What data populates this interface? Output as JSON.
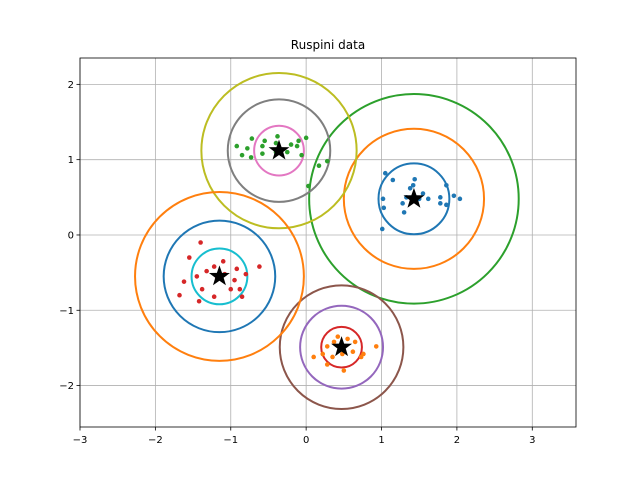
{
  "chart_data": {
    "type": "scatter",
    "title": "Ruspini data",
    "xlabel": "",
    "ylabel": "",
    "xlim": [
      -3,
      3.58
    ],
    "ylim": [
      -2.55,
      2.35
    ],
    "xticks": [
      -3,
      -2,
      -1,
      0,
      1,
      2,
      3
    ],
    "yticks": [
      -2,
      -1,
      0,
      1,
      2
    ],
    "xtick_labels": [
      "−3",
      "−2",
      "−1",
      "0",
      "1",
      "2",
      "3"
    ],
    "ytick_labels": [
      "−2",
      "−1",
      "0",
      "1",
      "2"
    ],
    "grid": true,
    "series": [
      {
        "color": "#1f77b4",
        "points": [
          [
            1.05,
            0.82
          ],
          [
            1.15,
            0.73
          ],
          [
            1.38,
            0.62
          ],
          [
            1.42,
            0.66
          ],
          [
            1.44,
            0.74
          ],
          [
            1.33,
            0.5
          ],
          [
            1.5,
            0.48
          ],
          [
            1.62,
            0.48
          ],
          [
            1.78,
            0.5
          ],
          [
            1.78,
            0.42
          ],
          [
            1.86,
            0.66
          ],
          [
            1.96,
            0.52
          ],
          [
            2.04,
            0.48
          ],
          [
            1.86,
            0.4
          ],
          [
            1.02,
            0.48
          ],
          [
            1.03,
            0.36
          ],
          [
            1.28,
            0.42
          ],
          [
            1.55,
            0.55
          ],
          [
            1.3,
            0.3
          ],
          [
            1.01,
            0.08
          ]
        ]
      },
      {
        "color": "#2ca02c",
        "points": [
          [
            -0.72,
            1.28
          ],
          [
            -0.55,
            1.25
          ],
          [
            -0.4,
            1.22
          ],
          [
            -0.1,
            1.25
          ],
          [
            0.0,
            1.29
          ],
          [
            -0.78,
            1.15
          ],
          [
            -0.58,
            1.08
          ],
          [
            -0.4,
            1.1
          ],
          [
            -0.25,
            1.1
          ],
          [
            -0.12,
            1.18
          ],
          [
            -0.85,
            1.06
          ],
          [
            -0.73,
            1.03
          ],
          [
            -0.58,
            1.18
          ],
          [
            -0.2,
            1.2
          ],
          [
            -0.38,
            1.31
          ],
          [
            -0.06,
            1.06
          ],
          [
            0.17,
            0.92
          ],
          [
            0.28,
            0.98
          ],
          [
            0.03,
            0.65
          ],
          [
            -0.92,
            1.18
          ]
        ]
      },
      {
        "color": "#ff7f0e",
        "points": [
          [
            0.1,
            -1.62
          ],
          [
            0.22,
            -1.58
          ],
          [
            0.28,
            -1.48
          ],
          [
            0.37,
            -1.42
          ],
          [
            0.42,
            -1.35
          ],
          [
            0.55,
            -1.38
          ],
          [
            0.65,
            -1.42
          ],
          [
            0.73,
            -1.62
          ],
          [
            0.76,
            -1.58
          ],
          [
            0.93,
            -1.48
          ],
          [
            0.5,
            -1.8
          ],
          [
            0.48,
            -1.58
          ],
          [
            0.62,
            -1.55
          ],
          [
            0.35,
            -1.62
          ],
          [
            0.28,
            -1.72
          ]
        ]
      },
      {
        "color": "#d62728",
        "points": [
          [
            -1.32,
            -0.48
          ],
          [
            -1.22,
            -0.42
          ],
          [
            -1.08,
            -0.52
          ],
          [
            -0.95,
            -0.6
          ],
          [
            -0.8,
            -0.52
          ],
          [
            -1.0,
            -0.72
          ],
          [
            -0.88,
            -0.72
          ],
          [
            -0.85,
            -0.82
          ],
          [
            -1.38,
            -0.72
          ],
          [
            -1.42,
            -0.88
          ],
          [
            -1.22,
            -0.82
          ],
          [
            -1.45,
            -0.55
          ],
          [
            -1.55,
            -0.3
          ],
          [
            -1.62,
            -0.62
          ],
          [
            -1.68,
            -0.8
          ],
          [
            -1.4,
            -0.1
          ],
          [
            -1.18,
            -0.58
          ],
          [
            -1.1,
            -0.35
          ],
          [
            -0.62,
            -0.42
          ],
          [
            -0.92,
            -0.45
          ]
        ]
      }
    ],
    "circles": [
      {
        "cx": 1.43,
        "cy": 0.48,
        "r": 0.47,
        "color": "#1f77b4"
      },
      {
        "cx": 1.43,
        "cy": 0.48,
        "r": 0.93,
        "color": "#ff7f0e"
      },
      {
        "cx": 1.43,
        "cy": 0.48,
        "r": 1.39,
        "color": "#2ca02c"
      },
      {
        "cx": 0.47,
        "cy": -1.49,
        "r": 0.27,
        "color": "#d62728"
      },
      {
        "cx": 0.47,
        "cy": -1.49,
        "r": 0.55,
        "color": "#9467bd"
      },
      {
        "cx": 0.47,
        "cy": -1.49,
        "r": 0.82,
        "color": "#8c564b"
      },
      {
        "cx": -0.36,
        "cy": 1.12,
        "r": 0.33,
        "color": "#e377c2"
      },
      {
        "cx": -0.36,
        "cy": 1.12,
        "r": 0.68,
        "color": "#7f7f7f"
      },
      {
        "cx": -0.36,
        "cy": 1.12,
        "r": 1.03,
        "color": "#bcbd22"
      },
      {
        "cx": -1.15,
        "cy": -0.55,
        "r": 0.37,
        "color": "#17becf"
      },
      {
        "cx": -1.15,
        "cy": -0.55,
        "r": 0.74,
        "color": "#1f77b4"
      },
      {
        "cx": -1.15,
        "cy": -0.55,
        "r": 1.12,
        "color": "#ff7f0e"
      }
    ],
    "centers": [
      {
        "x": 1.43,
        "y": 0.48
      },
      {
        "x": 0.47,
        "y": -1.49
      },
      {
        "x": -0.36,
        "y": 1.12
      },
      {
        "x": -1.15,
        "y": -0.55
      }
    ]
  }
}
